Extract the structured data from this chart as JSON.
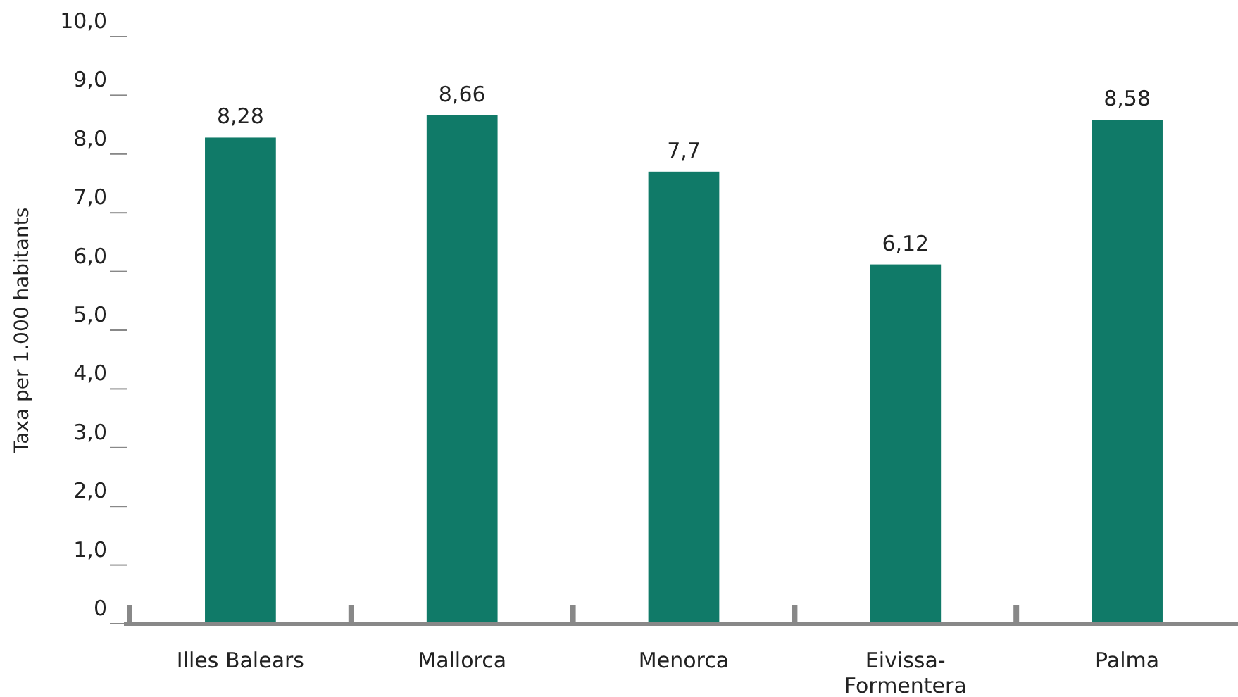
{
  "chart_data": {
    "type": "bar",
    "ylabel": "Taxa per 1.000 habitants",
    "categories": [
      "Illes Balears",
      "Mallorca",
      "Menorca",
      "Eivissa-Formentera",
      "Palma"
    ],
    "values": [
      8.28,
      8.66,
      7.7,
      6.12,
      8.58
    ],
    "value_labels": [
      "8,28",
      "8,66",
      "7,7",
      "6,12",
      "8,58"
    ],
    "color": "#107a68",
    "ylim": [
      0,
      10
    ],
    "yticks": [
      {
        "value": 0,
        "label": "0"
      },
      {
        "value": 1,
        "label": "1,0"
      },
      {
        "value": 2,
        "label": "2,0"
      },
      {
        "value": 3,
        "label": "3,0"
      },
      {
        "value": 4,
        "label": "4,0"
      },
      {
        "value": 5,
        "label": "5,0"
      },
      {
        "value": 6,
        "label": "6,0"
      },
      {
        "value": 7,
        "label": "7,0"
      },
      {
        "value": 8,
        "label": "8,0"
      },
      {
        "value": 9,
        "label": "9,0"
      },
      {
        "value": 10,
        "label": "10,0"
      }
    ],
    "grid": false
  }
}
